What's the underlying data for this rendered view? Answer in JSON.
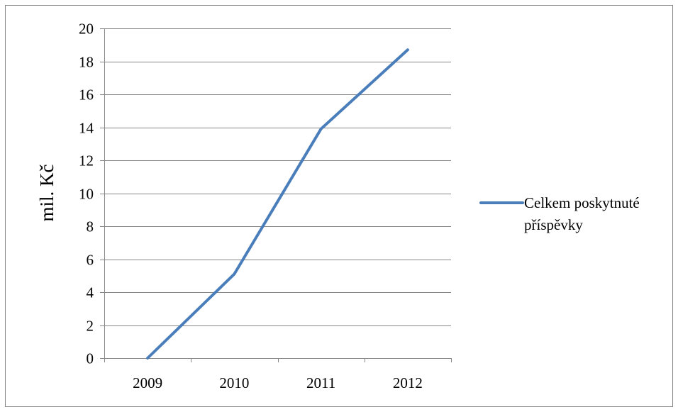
{
  "chart_data": {
    "type": "line",
    "title": "",
    "xlabel": "",
    "ylabel": "mil. Kč",
    "categories": [
      "2009",
      "2010",
      "2011",
      "2012"
    ],
    "series": [
      {
        "name": "Celkem poskytnuté příspěvky",
        "legend_lines": [
          "Celkem poskytnuté",
          "příspěvky"
        ],
        "values": [
          0,
          5.1,
          13.9,
          18.7
        ],
        "color": "#4a7ebb"
      }
    ],
    "ylim": [
      0,
      20
    ],
    "yticks": [
      "0",
      "2",
      "4",
      "6",
      "8",
      "10",
      "12",
      "14",
      "16",
      "18",
      "20"
    ],
    "grid": true,
    "legend_position": "right",
    "gridline_color": "#868686"
  }
}
